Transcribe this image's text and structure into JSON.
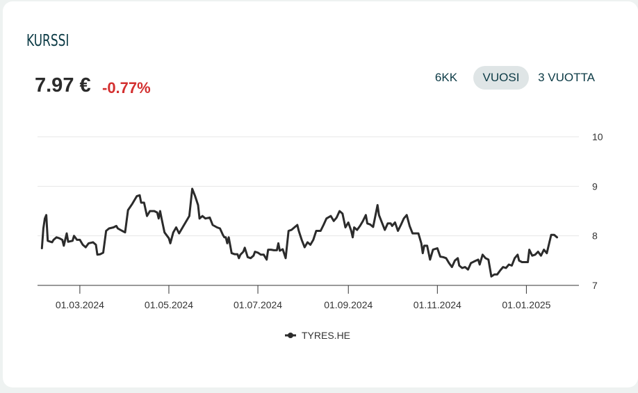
{
  "header": {
    "title": "KURSSI",
    "price": "7.97 €",
    "change": "-0.77%"
  },
  "period_tabs": [
    {
      "label": "6KK",
      "active": false
    },
    {
      "label": "VUOSI",
      "active": true
    },
    {
      "label": "3 VUOTTA",
      "active": false
    }
  ],
  "colors": {
    "line": "#2b2b2b",
    "negative": "#d32f2f",
    "title": "#0b3a45",
    "active_tab_bg": "#dfe5e6",
    "grid": "#e6e6e6"
  },
  "chart_data": {
    "type": "line",
    "title": "",
    "xlabel": "",
    "ylabel": "",
    "ylim": [
      7,
      10
    ],
    "y_ticks": [
      7,
      8,
      9,
      10
    ],
    "x_tick_labels": [
      "01.03.2024",
      "01.05.2024",
      "01.07.2024",
      "01.09.2024",
      "01.11.2024",
      "01.01.2025"
    ],
    "x_tick_dates": [
      "2024-03-01",
      "2024-05-01",
      "2024-07-01",
      "2024-09-01",
      "2024-11-01",
      "2025-01-01"
    ],
    "xlim": [
      "2024-02-01",
      "2025-02-06"
    ],
    "grid": true,
    "legend": "bottom-center",
    "series": [
      {
        "name": "TYRES.HE",
        "points": [
          [
            "2024-02-04",
            7.75
          ],
          [
            "2024-02-05",
            8.15
          ],
          [
            "2024-02-06",
            8.35
          ],
          [
            "2024-02-07",
            8.42
          ],
          [
            "2024-02-08",
            7.9
          ],
          [
            "2024-02-11",
            7.87
          ],
          [
            "2024-02-12",
            7.92
          ],
          [
            "2024-02-14",
            7.97
          ],
          [
            "2024-02-16",
            7.95
          ],
          [
            "2024-02-18",
            7.92
          ],
          [
            "2024-02-19",
            7.8
          ],
          [
            "2024-02-21",
            8.05
          ],
          [
            "2024-02-22",
            7.88
          ],
          [
            "2024-02-25",
            7.9
          ],
          [
            "2024-02-26",
            8.0
          ],
          [
            "2024-02-28",
            7.92
          ],
          [
            "2024-03-01",
            7.92
          ],
          [
            "2024-03-03",
            7.82
          ],
          [
            "2024-03-05",
            7.77
          ],
          [
            "2024-03-07",
            7.85
          ],
          [
            "2024-03-10",
            7.87
          ],
          [
            "2024-03-12",
            7.82
          ],
          [
            "2024-03-13",
            7.62
          ],
          [
            "2024-03-15",
            7.63
          ],
          [
            "2024-03-17",
            7.66
          ],
          [
            "2024-03-19",
            8.1
          ],
          [
            "2024-03-21",
            8.15
          ],
          [
            "2024-03-24",
            8.17
          ],
          [
            "2024-03-26",
            8.2
          ],
          [
            "2024-03-27",
            8.15
          ],
          [
            "2024-03-30",
            8.1
          ],
          [
            "2024-04-01",
            8.07
          ],
          [
            "2024-04-03",
            8.52
          ],
          [
            "2024-04-06",
            8.65
          ],
          [
            "2024-04-09",
            8.8
          ],
          [
            "2024-04-11",
            8.82
          ],
          [
            "2024-04-12",
            8.67
          ],
          [
            "2024-04-14",
            8.67
          ],
          [
            "2024-04-16",
            8.4
          ],
          [
            "2024-04-18",
            8.5
          ],
          [
            "2024-04-21",
            8.5
          ],
          [
            "2024-04-23",
            8.47
          ],
          [
            "2024-04-24",
            8.35
          ],
          [
            "2024-04-25",
            8.5
          ],
          [
            "2024-04-26",
            8.35
          ],
          [
            "2024-04-28",
            8.07
          ],
          [
            "2024-05-01",
            7.95
          ],
          [
            "2024-05-02",
            7.85
          ],
          [
            "2024-05-04",
            8.07
          ],
          [
            "2024-05-06",
            8.17
          ],
          [
            "2024-05-08",
            8.05
          ],
          [
            "2024-05-11",
            8.2
          ],
          [
            "2024-05-15",
            8.4
          ],
          [
            "2024-05-17",
            8.95
          ],
          [
            "2024-05-19",
            8.8
          ],
          [
            "2024-05-21",
            8.62
          ],
          [
            "2024-05-22",
            8.35
          ],
          [
            "2024-05-24",
            8.4
          ],
          [
            "2024-05-26",
            8.35
          ],
          [
            "2024-05-29",
            8.37
          ],
          [
            "2024-05-31",
            8.22
          ],
          [
            "2024-06-03",
            8.17
          ],
          [
            "2024-06-05",
            8.15
          ],
          [
            "2024-06-07",
            8.02
          ],
          [
            "2024-06-08",
            7.97
          ],
          [
            "2024-06-09",
            7.97
          ],
          [
            "2024-06-10",
            7.85
          ],
          [
            "2024-06-11",
            7.97
          ],
          [
            "2024-06-13",
            7.65
          ],
          [
            "2024-06-15",
            7.63
          ],
          [
            "2024-06-17",
            7.63
          ],
          [
            "2024-06-18",
            7.55
          ],
          [
            "2024-06-19",
            7.62
          ],
          [
            "2024-06-21",
            7.68
          ],
          [
            "2024-06-22",
            7.76
          ],
          [
            "2024-06-24",
            7.57
          ],
          [
            "2024-06-26",
            7.55
          ],
          [
            "2024-06-28",
            7.6
          ],
          [
            "2024-06-29",
            7.68
          ],
          [
            "2024-07-01",
            7.66
          ],
          [
            "2024-07-03",
            7.62
          ],
          [
            "2024-07-05",
            7.62
          ],
          [
            "2024-07-07",
            7.52
          ],
          [
            "2024-07-08",
            7.72
          ],
          [
            "2024-07-10",
            7.72
          ],
          [
            "2024-07-12",
            7.71
          ],
          [
            "2024-07-14",
            7.71
          ],
          [
            "2024-07-15",
            7.85
          ],
          [
            "2024-07-16",
            7.7
          ],
          [
            "2024-07-18",
            7.73
          ],
          [
            "2024-07-20",
            7.55
          ],
          [
            "2024-07-22",
            8.1
          ],
          [
            "2024-07-24",
            8.12
          ],
          [
            "2024-07-26",
            8.17
          ],
          [
            "2024-07-28",
            8.22
          ],
          [
            "2024-07-29",
            8.1
          ],
          [
            "2024-07-31",
            7.92
          ],
          [
            "2024-08-02",
            7.77
          ],
          [
            "2024-08-04",
            7.87
          ],
          [
            "2024-08-06",
            7.82
          ],
          [
            "2024-08-08",
            7.92
          ],
          [
            "2024-08-10",
            8.1
          ],
          [
            "2024-08-13",
            8.1
          ],
          [
            "2024-08-15",
            8.22
          ],
          [
            "2024-08-17",
            8.35
          ],
          [
            "2024-08-20",
            8.4
          ],
          [
            "2024-08-22",
            8.3
          ],
          [
            "2024-08-24",
            8.37
          ],
          [
            "2024-08-26",
            8.5
          ],
          [
            "2024-08-28",
            8.45
          ],
          [
            "2024-08-30",
            8.17
          ],
          [
            "2024-09-01",
            8.27
          ],
          [
            "2024-09-03",
            8.1
          ],
          [
            "2024-09-04",
            7.97
          ],
          [
            "2024-09-05",
            8.17
          ],
          [
            "2024-09-07",
            8.12
          ],
          [
            "2024-09-09",
            8.2
          ],
          [
            "2024-09-11",
            8.3
          ],
          [
            "2024-09-13",
            8.42
          ],
          [
            "2024-09-14",
            8.25
          ],
          [
            "2024-09-16",
            8.23
          ],
          [
            "2024-09-18",
            8.18
          ],
          [
            "2024-09-21",
            8.62
          ],
          [
            "2024-09-22",
            8.42
          ],
          [
            "2024-09-24",
            8.27
          ],
          [
            "2024-09-26",
            8.12
          ],
          [
            "2024-09-28",
            8.25
          ],
          [
            "2024-09-30",
            8.25
          ],
          [
            "2024-10-01",
            8.2
          ],
          [
            "2024-10-03",
            8.27
          ],
          [
            "2024-10-05",
            8.1
          ],
          [
            "2024-10-07",
            8.22
          ],
          [
            "2024-10-09",
            8.35
          ],
          [
            "2024-10-11",
            8.42
          ],
          [
            "2024-10-13",
            8.2
          ],
          [
            "2024-10-15",
            8.05
          ],
          [
            "2024-10-17",
            8.05
          ],
          [
            "2024-10-19",
            8.05
          ],
          [
            "2024-10-21",
            7.85
          ],
          [
            "2024-10-22",
            7.65
          ],
          [
            "2024-10-23",
            7.8
          ],
          [
            "2024-10-25",
            7.8
          ],
          [
            "2024-10-27",
            7.52
          ],
          [
            "2024-10-29",
            7.72
          ],
          [
            "2024-11-01",
            7.75
          ],
          [
            "2024-11-03",
            7.58
          ],
          [
            "2024-11-05",
            7.57
          ],
          [
            "2024-11-07",
            7.55
          ],
          [
            "2024-11-09",
            7.45
          ],
          [
            "2024-11-11",
            7.37
          ],
          [
            "2024-11-13",
            7.5
          ],
          [
            "2024-11-15",
            7.55
          ],
          [
            "2024-11-16",
            7.4
          ],
          [
            "2024-11-18",
            7.35
          ],
          [
            "2024-11-20",
            7.37
          ],
          [
            "2024-11-22",
            7.32
          ],
          [
            "2024-11-24",
            7.45
          ],
          [
            "2024-11-26",
            7.48
          ],
          [
            "2024-11-29",
            7.52
          ],
          [
            "2024-11-30",
            7.42
          ],
          [
            "2024-12-02",
            7.62
          ],
          [
            "2024-12-04",
            7.55
          ],
          [
            "2024-12-06",
            7.52
          ],
          [
            "2024-12-08",
            7.18
          ],
          [
            "2024-12-10",
            7.22
          ],
          [
            "2024-12-12",
            7.22
          ],
          [
            "2024-12-14",
            7.3
          ],
          [
            "2024-12-16",
            7.37
          ],
          [
            "2024-12-18",
            7.35
          ],
          [
            "2024-12-20",
            7.42
          ],
          [
            "2024-12-22",
            7.4
          ],
          [
            "2024-12-24",
            7.55
          ],
          [
            "2024-12-26",
            7.62
          ],
          [
            "2024-12-27",
            7.5
          ],
          [
            "2024-12-29",
            7.47
          ],
          [
            "2024-12-31",
            7.47
          ],
          [
            "2025-01-02",
            7.47
          ],
          [
            "2025-01-03",
            7.72
          ],
          [
            "2025-01-05",
            7.6
          ],
          [
            "2025-01-07",
            7.62
          ],
          [
            "2025-01-09",
            7.68
          ],
          [
            "2025-01-11",
            7.6
          ],
          [
            "2025-01-13",
            7.72
          ],
          [
            "2025-01-15",
            7.65
          ],
          [
            "2025-01-18",
            8.02
          ],
          [
            "2025-01-20",
            8.02
          ],
          [
            "2025-01-22",
            7.97
          ]
        ]
      }
    ]
  }
}
